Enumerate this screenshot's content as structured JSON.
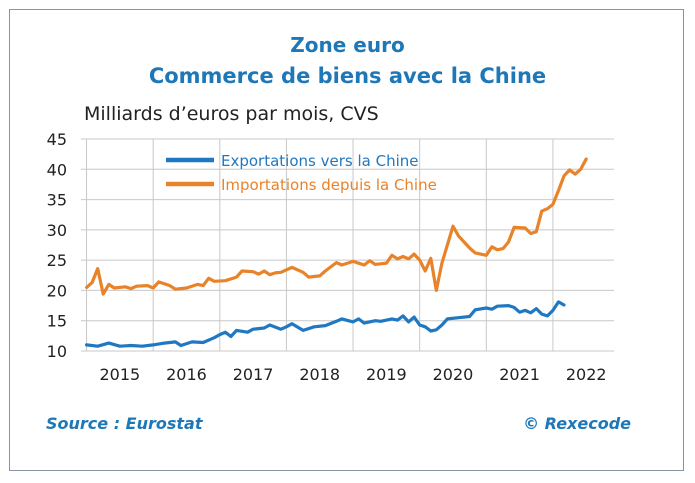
{
  "header": {
    "title": "Zone euro",
    "subtitle": "Commerce de biens avec la Chine",
    "unit_label": "Milliards d’euros par mois, CVS"
  },
  "footer": {
    "source": "Source : Eurostat",
    "copyright": "© Rexecode"
  },
  "colors": {
    "title": "#1e78b8",
    "exports": "#1f78c1",
    "imports": "#e8832a",
    "grid": "#c8c8c8"
  },
  "chart_data": {
    "type": "line",
    "title": "Commerce de biens avec la Chine",
    "ylabel": "Milliards d’euros par mois, CVS",
    "ylim": [
      10,
      45
    ],
    "yticks": [
      "10",
      "15",
      "20",
      "25",
      "30",
      "35",
      "40",
      "45"
    ],
    "xlim": [
      "2014-12",
      "2022-12"
    ],
    "xticks": [
      "2015",
      "2016",
      "2017",
      "2018",
      "2019",
      "2020",
      "2021",
      "2022"
    ],
    "grid": true,
    "legend_position": "top-left",
    "series": [
      {
        "name": "Exportations vers la Chine",
        "color": "#1f78c1",
        "points": [
          [
            "2015-01",
            11.0
          ],
          [
            "2015-03",
            10.8
          ],
          [
            "2015-05",
            11.3
          ],
          [
            "2015-07",
            10.8
          ],
          [
            "2015-09",
            10.9
          ],
          [
            "2015-11",
            10.8
          ],
          [
            "2016-01",
            11.0
          ],
          [
            "2016-03",
            11.3
          ],
          [
            "2016-05",
            11.5
          ],
          [
            "2016-06",
            10.9
          ],
          [
            "2016-08",
            11.5
          ],
          [
            "2016-10",
            11.4
          ],
          [
            "2016-12",
            12.2
          ],
          [
            "2017-01",
            12.7
          ],
          [
            "2017-02",
            13.1
          ],
          [
            "2017-03",
            12.4
          ],
          [
            "2017-04",
            13.4
          ],
          [
            "2017-06",
            13.1
          ],
          [
            "2017-07",
            13.6
          ],
          [
            "2017-09",
            13.8
          ],
          [
            "2017-10",
            14.3
          ],
          [
            "2017-12",
            13.6
          ],
          [
            "2018-01",
            14.0
          ],
          [
            "2018-02",
            14.5
          ],
          [
            "2018-04",
            13.4
          ],
          [
            "2018-06",
            14.0
          ],
          [
            "2018-08",
            14.2
          ],
          [
            "2018-10",
            14.9
          ],
          [
            "2018-11",
            15.3
          ],
          [
            "2019-01",
            14.8
          ],
          [
            "2019-02",
            15.3
          ],
          [
            "2019-03",
            14.6
          ],
          [
            "2019-05",
            15.0
          ],
          [
            "2019-06",
            14.9
          ],
          [
            "2019-08",
            15.3
          ],
          [
            "2019-09",
            15.1
          ],
          [
            "2019-10",
            15.8
          ],
          [
            "2019-11",
            14.8
          ],
          [
            "2019-12",
            15.6
          ],
          [
            "2020-01",
            14.3
          ],
          [
            "2020-02",
            14.0
          ],
          [
            "2020-03",
            13.3
          ],
          [
            "2020-04",
            13.5
          ],
          [
            "2020-05",
            14.3
          ],
          [
            "2020-06",
            15.3
          ],
          [
            "2020-08",
            15.5
          ],
          [
            "2020-10",
            15.7
          ],
          [
            "2020-11",
            16.8
          ],
          [
            "2021-01",
            17.1
          ],
          [
            "2021-02",
            16.9
          ],
          [
            "2021-03",
            17.4
          ],
          [
            "2021-05",
            17.5
          ],
          [
            "2021-06",
            17.2
          ],
          [
            "2021-07",
            16.4
          ],
          [
            "2021-08",
            16.7
          ],
          [
            "2021-09",
            16.3
          ],
          [
            "2021-10",
            17.0
          ],
          [
            "2021-11",
            16.1
          ],
          [
            "2021-12",
            15.8
          ],
          [
            "2022-01",
            16.7
          ],
          [
            "2022-02",
            18.1
          ],
          [
            "2022-03",
            17.6
          ]
        ]
      },
      {
        "name": "Importations depuis la Chine",
        "color": "#e8832a",
        "points": [
          [
            "2015-01",
            20.5
          ],
          [
            "2015-02",
            21.3
          ],
          [
            "2015-03",
            23.6
          ],
          [
            "2015-04",
            19.4
          ],
          [
            "2015-05",
            21.0
          ],
          [
            "2015-06",
            20.4
          ],
          [
            "2015-08",
            20.6
          ],
          [
            "2015-09",
            20.3
          ],
          [
            "2015-10",
            20.7
          ],
          [
            "2015-12",
            20.8
          ],
          [
            "2016-01",
            20.4
          ],
          [
            "2016-02",
            21.4
          ],
          [
            "2016-04",
            20.8
          ],
          [
            "2016-05",
            20.2
          ],
          [
            "2016-07",
            20.4
          ],
          [
            "2016-09",
            21.0
          ],
          [
            "2016-10",
            20.8
          ],
          [
            "2016-11",
            22.0
          ],
          [
            "2016-12",
            21.5
          ],
          [
            "2017-02",
            21.6
          ],
          [
            "2017-04",
            22.2
          ],
          [
            "2017-05",
            23.2
          ],
          [
            "2017-07",
            23.1
          ],
          [
            "2017-08",
            22.7
          ],
          [
            "2017-09",
            23.2
          ],
          [
            "2017-10",
            22.6
          ],
          [
            "2017-11",
            22.9
          ],
          [
            "2017-12",
            23.0
          ],
          [
            "2018-02",
            23.8
          ],
          [
            "2018-04",
            23.0
          ],
          [
            "2018-05",
            22.2
          ],
          [
            "2018-07",
            22.4
          ],
          [
            "2018-08",
            23.2
          ],
          [
            "2018-10",
            24.6
          ],
          [
            "2018-11",
            24.2
          ],
          [
            "2019-01",
            24.8
          ],
          [
            "2019-02",
            24.5
          ],
          [
            "2019-03",
            24.2
          ],
          [
            "2019-04",
            24.9
          ],
          [
            "2019-05",
            24.3
          ],
          [
            "2019-07",
            24.5
          ],
          [
            "2019-08",
            25.8
          ],
          [
            "2019-09",
            25.2
          ],
          [
            "2019-10",
            25.6
          ],
          [
            "2019-11",
            25.2
          ],
          [
            "2019-12",
            26.0
          ],
          [
            "2020-01",
            25.0
          ],
          [
            "2020-02",
            23.2
          ],
          [
            "2020-03",
            25.3
          ],
          [
            "2020-04",
            20.0
          ],
          [
            "2020-05",
            24.5
          ],
          [
            "2020-07",
            30.6
          ],
          [
            "2020-08",
            29.0
          ],
          [
            "2020-09",
            28.0
          ],
          [
            "2020-10",
            27.0
          ],
          [
            "2020-11",
            26.2
          ],
          [
            "2021-01",
            25.8
          ],
          [
            "2021-02",
            27.2
          ],
          [
            "2021-03",
            26.7
          ],
          [
            "2021-04",
            26.9
          ],
          [
            "2021-05",
            28.0
          ],
          [
            "2021-06",
            30.4
          ],
          [
            "2021-08",
            30.3
          ],
          [
            "2021-09",
            29.4
          ],
          [
            "2021-10",
            29.7
          ],
          [
            "2021-11",
            33.1
          ],
          [
            "2021-12",
            33.5
          ],
          [
            "2022-01",
            34.2
          ],
          [
            "2022-02",
            36.5
          ],
          [
            "2022-03",
            38.9
          ],
          [
            "2022-04",
            39.9
          ],
          [
            "2022-05",
            39.2
          ],
          [
            "2022-06",
            40.0
          ],
          [
            "2022-07",
            41.7
          ]
        ]
      }
    ]
  }
}
